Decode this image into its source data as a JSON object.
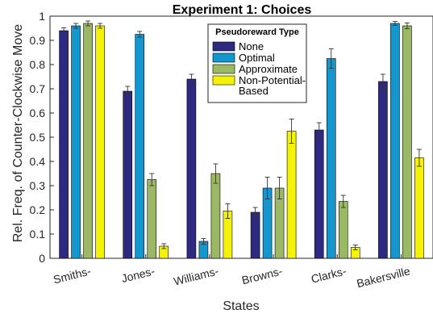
{
  "chart_data": {
    "type": "bar",
    "title": "Experiment 1: Choices",
    "xlabel": "States",
    "ylabel": "Rel. Freq. of Counter-Clockwise Move",
    "ylim": [
      0,
      1
    ],
    "yticks": [
      "0",
      "0.1",
      "0.2",
      "0.3",
      "0.4",
      "0.5",
      "0.6",
      "0.7",
      "0.8",
      "0.9",
      "1"
    ],
    "categories": [
      "Smiths-",
      "Jones-",
      "Williams-",
      "Browns-",
      "Clarks-",
      "Bakersville"
    ],
    "legend_title": "Pseudoreward Type",
    "legend_position": "top-right",
    "series": [
      {
        "name": "None",
        "color": "#2e2a82",
        "values": [
          0.94,
          0.69,
          0.74,
          0.19,
          0.53,
          0.73
        ],
        "errors": [
          0.012,
          0.02,
          0.02,
          0.02,
          0.03,
          0.03
        ]
      },
      {
        "name": "Optimal",
        "color": "#1496cf",
        "values": [
          0.96,
          0.925,
          0.07,
          0.29,
          0.825,
          0.97
        ],
        "errors": [
          0.01,
          0.012,
          0.012,
          0.045,
          0.04,
          0.008
        ]
      },
      {
        "name": "Approximate",
        "color": "#9bb865",
        "values": [
          0.97,
          0.325,
          0.35,
          0.29,
          0.235,
          0.96
        ],
        "errors": [
          0.01,
          0.025,
          0.04,
          0.045,
          0.025,
          0.012
        ]
      },
      {
        "name": "Non-Potential-\nBased",
        "color": "#f5f20a",
        "values": [
          0.96,
          0.05,
          0.195,
          0.525,
          0.045,
          0.415
        ],
        "errors": [
          0.01,
          0.01,
          0.03,
          0.05,
          0.01,
          0.035
        ]
      }
    ]
  }
}
